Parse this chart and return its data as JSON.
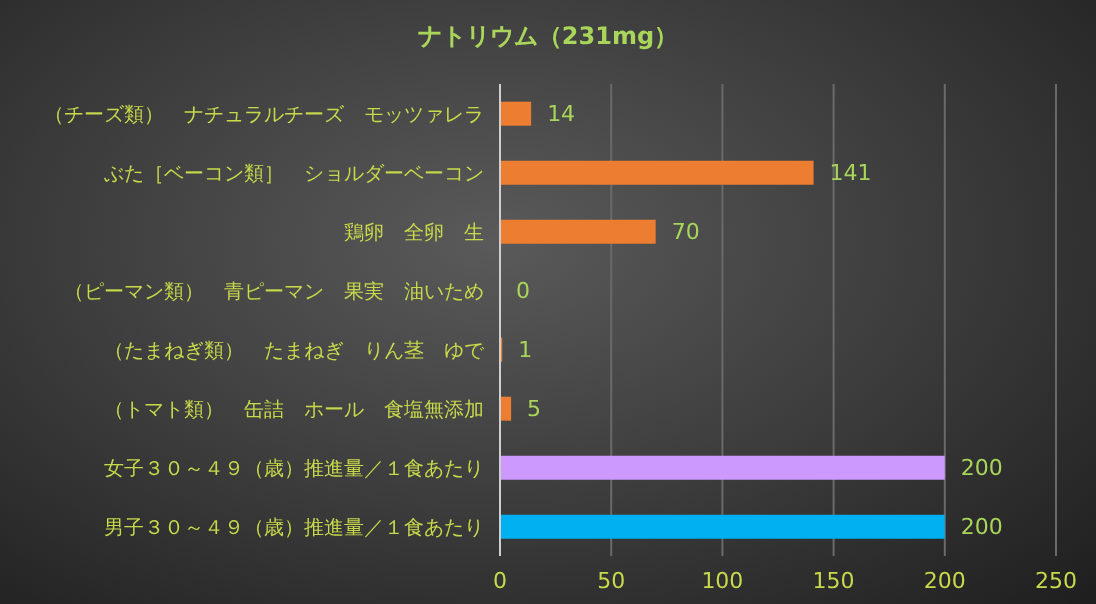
{
  "chart_data": {
    "type": "bar",
    "orientation": "horizontal",
    "title": "ナトリウム（231mg）",
    "categories": [
      "（チーズ類）　ナチュラルチーズ　モッツァレラ",
      "ぶた［ベーコン類］　ショルダーベーコン",
      "鶏卵　全卵　生",
      "（ピーマン類）　青ピーマン　果実　油いため",
      "（たまねぎ類）　たまねぎ　りん茎　ゆで",
      "（トマト類）　缶詰　ホール　食塩無添加",
      "女子３０～４９（歳）推進量／１食あたり",
      "男子３０～４９（歳）推進量／１食あたり"
    ],
    "values": [
      14,
      141,
      70,
      0,
      1,
      5,
      200,
      200
    ],
    "colors": [
      "#ed7d31",
      "#ed7d31",
      "#ed7d31",
      "#ed7d31",
      "#ed7d31",
      "#ed7d31",
      "#cc99ff",
      "#00b0f0"
    ],
    "xlim": [
      0,
      250
    ],
    "xticks": [
      0,
      50,
      100,
      150,
      200,
      250
    ],
    "grid": "x",
    "data_labels": true
  }
}
